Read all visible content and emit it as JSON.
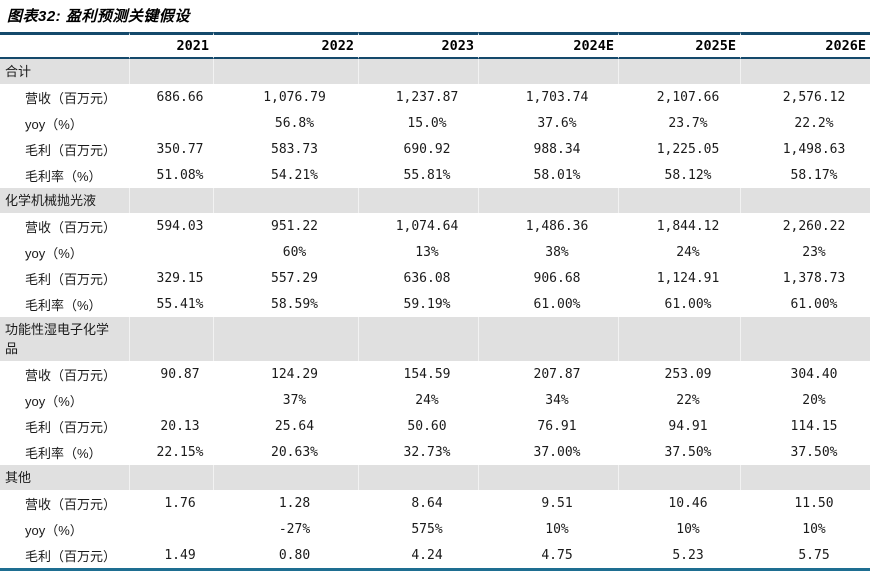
{
  "figure": {
    "title": "图表32: 盈利预测关键假设"
  },
  "colors": {
    "rule_top": "#14496B",
    "rule_bottom": "#1E6E91",
    "section_band": "#E0E0E0",
    "text": "#1a1a1a"
  },
  "chart_data": {
    "type": "table",
    "title": "图表32: 盈利预测关键假设",
    "columns": [
      "2021",
      "2022",
      "2023",
      "2024E",
      "2025E",
      "2026E"
    ],
    "sections": [
      {
        "name": "合计",
        "rows": [
          {
            "label": "营收（百万元）",
            "values": [
              "686.66",
              "1,076.79",
              "1,237.87",
              "1,703.74",
              "2,107.66",
              "2,576.12"
            ]
          },
          {
            "label": "yoy（%）",
            "values": [
              "",
              "56.8%",
              "15.0%",
              "37.6%",
              "23.7%",
              "22.2%"
            ]
          },
          {
            "label": "毛利（百万元）",
            "values": [
              "350.77",
              "583.73",
              "690.92",
              "988.34",
              "1,225.05",
              "1,498.63"
            ]
          },
          {
            "label": "毛利率（%）",
            "values": [
              "51.08%",
              "54.21%",
              "55.81%",
              "58.01%",
              "58.12%",
              "58.17%"
            ]
          }
        ]
      },
      {
        "name": "化学机械抛光液",
        "rows": [
          {
            "label": "营收（百万元）",
            "values": [
              "594.03",
              "951.22",
              "1,074.64",
              "1,486.36",
              "1,844.12",
              "2,260.22"
            ]
          },
          {
            "label": "yoy（%）",
            "values": [
              "",
              "60%",
              "13%",
              "38%",
              "24%",
              "23%"
            ]
          },
          {
            "label": "毛利（百万元）",
            "values": [
              "329.15",
              "557.29",
              "636.08",
              "906.68",
              "1,124.91",
              "1,378.73"
            ]
          },
          {
            "label": "毛利率（%）",
            "values": [
              "55.41%",
              "58.59%",
              "59.19%",
              "61.00%",
              "61.00%",
              "61.00%"
            ]
          }
        ]
      },
      {
        "name": "功能性湿电子化学品",
        "rows": [
          {
            "label": "营收（百万元）",
            "values": [
              "90.87",
              "124.29",
              "154.59",
              "207.87",
              "253.09",
              "304.40"
            ]
          },
          {
            "label": "yoy（%）",
            "values": [
              "",
              "37%",
              "24%",
              "34%",
              "22%",
              "20%"
            ]
          },
          {
            "label": "毛利（百万元）",
            "values": [
              "20.13",
              "25.64",
              "50.60",
              "76.91",
              "94.91",
              "114.15"
            ]
          },
          {
            "label": "毛利率（%）",
            "values": [
              "22.15%",
              "20.63%",
              "32.73%",
              "37.00%",
              "37.50%",
              "37.50%"
            ]
          }
        ]
      },
      {
        "name": "其他",
        "rows": [
          {
            "label": "营收（百万元）",
            "values": [
              "1.76",
              "1.28",
              "8.64",
              "9.51",
              "10.46",
              "11.50"
            ]
          },
          {
            "label": "yoy（%）",
            "values": [
              "",
              "-27%",
              "575%",
              "10%",
              "10%",
              "10%"
            ]
          },
          {
            "label": "毛利（百万元）",
            "values": [
              "1.49",
              "0.80",
              "4.24",
              "4.75",
              "5.23",
              "5.75"
            ]
          }
        ]
      }
    ]
  }
}
